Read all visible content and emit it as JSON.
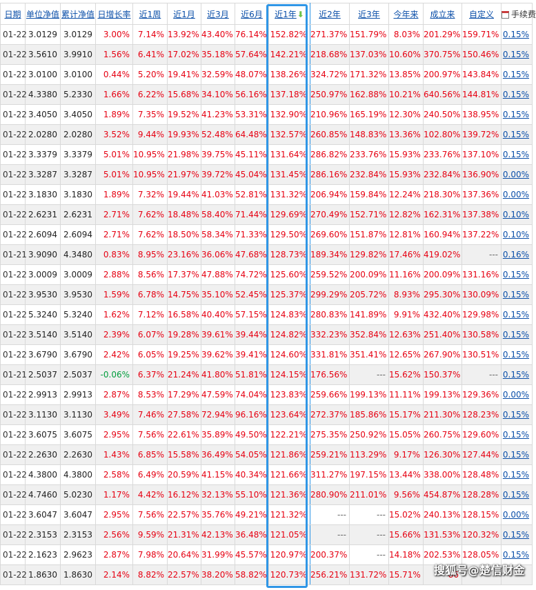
{
  "header": {
    "date": "日期",
    "unit_nav": "单位净值",
    "acc_nav": "累计净值",
    "daily": "日增长率",
    "w1": "近1周",
    "m1": "近1月",
    "m3": "近3月",
    "m6": "近6月",
    "y1": "近1年",
    "y2": "近2年",
    "y3": "近3年",
    "ytd": "今年来",
    "since": "成立来",
    "custom": "自定义",
    "fee": "手续费"
  },
  "colors": {
    "up": "#e60012",
    "down": "#009d3c",
    "link": "#0a4ea8",
    "highlight": "#2f96e6"
  },
  "icons": {
    "sort": "arrow-down-icon",
    "custom": "calendar-icon"
  },
  "rows": [
    [
      "01-22",
      "3.0129",
      "3.0129",
      "3.00%",
      "7.14%",
      "13.92%",
      "43.40%",
      "76.14%",
      "152.82%",
      "271.37%",
      "151.79%",
      "8.03%",
      "201.29%",
      "159.71%",
      "0.15%"
    ],
    [
      "01-22",
      "3.5610",
      "3.9910",
      "1.56%",
      "6.41%",
      "17.02%",
      "35.18%",
      "57.64%",
      "142.21%",
      "218.68%",
      "137.03%",
      "10.60%",
      "370.75%",
      "150.46%",
      "0.15%"
    ],
    [
      "01-22",
      "3.0100",
      "3.0100",
      "0.44%",
      "5.20%",
      "19.41%",
      "32.59%",
      "48.07%",
      "138.26%",
      "324.72%",
      "171.32%",
      "13.85%",
      "200.97%",
      "143.84%",
      "0.15%"
    ],
    [
      "01-22",
      "4.3380",
      "5.2330",
      "1.66%",
      "6.22%",
      "15.68%",
      "34.10%",
      "56.16%",
      "137.18%",
      "250.97%",
      "162.88%",
      "10.21%",
      "640.56%",
      "144.81%",
      "0.15%"
    ],
    [
      "01-22",
      "3.4050",
      "3.4050",
      "1.89%",
      "7.35%",
      "19.52%",
      "41.23%",
      "53.31%",
      "132.90%",
      "210.96%",
      "165.19%",
      "12.30%",
      "240.50%",
      "138.95%",
      "0.15%"
    ],
    [
      "01-22",
      "2.0280",
      "2.0280",
      "3.52%",
      "9.44%",
      "19.93%",
      "52.48%",
      "64.48%",
      "132.57%",
      "260.85%",
      "148.83%",
      "13.36%",
      "102.80%",
      "139.72%",
      "0.15%"
    ],
    [
      "01-22",
      "3.3379",
      "3.3379",
      "5.01%",
      "10.95%",
      "21.98%",
      "39.75%",
      "45.11%",
      "131.64%",
      "286.82%",
      "233.76%",
      "15.93%",
      "233.76%",
      "137.10%",
      "0.15%"
    ],
    [
      "01-22",
      "3.3287",
      "3.3287",
      "5.01%",
      "10.95%",
      "21.97%",
      "39.72%",
      "45.04%",
      "131.45%",
      "286.16%",
      "232.84%",
      "15.93%",
      "232.84%",
      "136.90%",
      "0.00%"
    ],
    [
      "01-22",
      "3.1830",
      "3.1830",
      "1.89%",
      "7.32%",
      "19.44%",
      "41.03%",
      "52.81%",
      "131.32%",
      "206.94%",
      "159.84%",
      "12.24%",
      "218.30%",
      "137.36%",
      "0.00%"
    ],
    [
      "01-22",
      "2.6231",
      "2.6231",
      "2.71%",
      "7.62%",
      "18.48%",
      "58.40%",
      "71.44%",
      "129.69%",
      "270.49%",
      "152.71%",
      "12.82%",
      "162.31%",
      "137.38%",
      "0.10%"
    ],
    [
      "01-22",
      "2.6094",
      "2.6094",
      "2.71%",
      "7.62%",
      "18.50%",
      "58.34%",
      "71.33%",
      "129.50%",
      "269.60%",
      "151.87%",
      "12.81%",
      "160.94%",
      "137.22%",
      "0.10%"
    ],
    [
      "01-21",
      "3.9090",
      "4.3480",
      "0.83%",
      "8.95%",
      "23.16%",
      "36.06%",
      "47.68%",
      "128.73%",
      "189.34%",
      "129.82%",
      "17.46%",
      "419.02%",
      "---",
      "0.16%"
    ],
    [
      "01-22",
      "3.0009",
      "3.0009",
      "2.88%",
      "8.56%",
      "17.37%",
      "47.88%",
      "74.72%",
      "125.60%",
      "259.52%",
      "200.09%",
      "11.16%",
      "200.09%",
      "131.16%",
      "0.15%"
    ],
    [
      "01-22",
      "3.9530",
      "3.9530",
      "1.59%",
      "6.78%",
      "14.75%",
      "35.10%",
      "52.45%",
      "125.37%",
      "299.29%",
      "205.72%",
      "8.93%",
      "295.30%",
      "130.09%",
      "0.15%"
    ],
    [
      "01-22",
      "5.3240",
      "5.3240",
      "1.62%",
      "7.12%",
      "16.58%",
      "40.40%",
      "57.15%",
      "124.83%",
      "280.83%",
      "141.89%",
      "9.91%",
      "432.40%",
      "129.98%",
      "0.15%"
    ],
    [
      "01-22",
      "3.5140",
      "3.5140",
      "2.39%",
      "6.07%",
      "19.28%",
      "39.61%",
      "39.44%",
      "124.82%",
      "332.23%",
      "352.84%",
      "12.63%",
      "251.40%",
      "130.58%",
      "0.15%"
    ],
    [
      "01-22",
      "3.6790",
      "3.6790",
      "2.42%",
      "6.05%",
      "19.25%",
      "39.62%",
      "39.41%",
      "124.60%",
      "331.81%",
      "351.41%",
      "12.65%",
      "267.90%",
      "130.51%",
      "0.15%"
    ],
    [
      "01-21",
      "2.5037",
      "2.5037",
      "-0.06%",
      "6.37%",
      "21.24%",
      "41.80%",
      "51.81%",
      "124.15%",
      "176.56%",
      "---",
      "15.62%",
      "150.37%",
      "---",
      "0.15%"
    ],
    [
      "01-22",
      "2.9913",
      "2.9913",
      "2.87%",
      "8.53%",
      "17.29%",
      "47.59%",
      "74.04%",
      "123.83%",
      "259.66%",
      "199.13%",
      "11.11%",
      "199.13%",
      "129.36%",
      "0.00%"
    ],
    [
      "01-22",
      "3.1130",
      "3.1130",
      "3.49%",
      "7.46%",
      "27.58%",
      "72.94%",
      "96.16%",
      "123.64%",
      "272.37%",
      "185.86%",
      "15.17%",
      "211.30%",
      "128.23%",
      "0.15%"
    ],
    [
      "01-22",
      "3.6075",
      "3.6075",
      "2.95%",
      "7.56%",
      "22.61%",
      "35.89%",
      "49.50%",
      "122.21%",
      "275.35%",
      "250.92%",
      "15.05%",
      "260.75%",
      "129.60%",
      "0.15%"
    ],
    [
      "01-22",
      "2.2630",
      "2.2630",
      "1.43%",
      "6.85%",
      "15.58%",
      "36.49%",
      "54.05%",
      "121.86%",
      "259.21%",
      "113.29%",
      "9.17%",
      "126.30%",
      "127.44%",
      "0.15%"
    ],
    [
      "01-22",
      "4.3800",
      "4.3800",
      "2.58%",
      "6.49%",
      "20.59%",
      "41.15%",
      "40.34%",
      "121.66%",
      "311.27%",
      "197.15%",
      "13.44%",
      "338.00%",
      "128.48%",
      "0.15%"
    ],
    [
      "01-22",
      "4.7460",
      "5.0230",
      "1.17%",
      "4.42%",
      "16.12%",
      "32.13%",
      "55.10%",
      "121.36%",
      "280.90%",
      "211.01%",
      "9.56%",
      "454.87%",
      "128.28%",
      "0.15%"
    ],
    [
      "01-22",
      "3.6047",
      "3.6047",
      "2.95%",
      "7.56%",
      "22.57%",
      "35.76%",
      "49.21%",
      "121.32%",
      "---",
      "---",
      "15.02%",
      "240.13%",
      "128.15%",
      "0.00%"
    ],
    [
      "01-22",
      "2.3153",
      "2.3153",
      "2.56%",
      "9.59%",
      "21.31%",
      "42.13%",
      "36.48%",
      "121.05%",
      "---",
      "---",
      "15.66%",
      "131.53%",
      "120.32%",
      "0.15%"
    ],
    [
      "01-22",
      "2.1623",
      "2.9623",
      "2.87%",
      "7.98%",
      "20.64%",
      "31.99%",
      "45.57%",
      "120.97%",
      "200.37%",
      "---",
      "14.18%",
      "202.53%",
      "128.05%",
      "0.15%"
    ],
    [
      "01-22",
      "1.8630",
      "1.8630",
      "2.14%",
      "8.82%",
      "22.57%",
      "38.20%",
      "58.82%",
      "120.73%",
      "256.21%",
      "131.72%",
      "15.71%",
      "86",
      "",
      ""
    ]
  ],
  "watermark": "搜狐号@楚信财金"
}
